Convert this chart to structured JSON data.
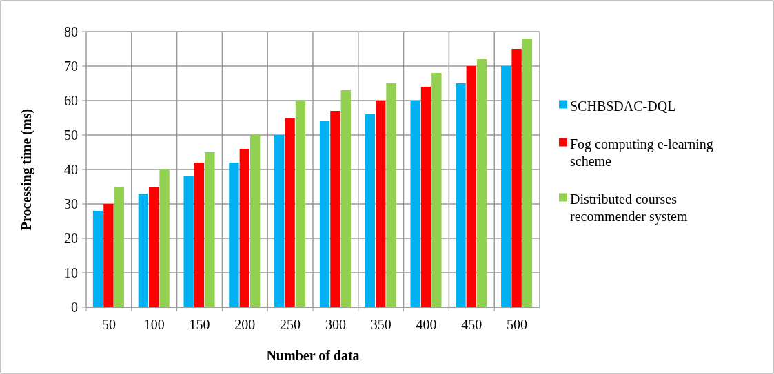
{
  "chart_data": {
    "type": "bar",
    "xlabel": "Number of data",
    "ylabel": "Processing time (ms)",
    "categories": [
      "50",
      "100",
      "150",
      "200",
      "250",
      "300",
      "350",
      "400",
      "450",
      "500"
    ],
    "series": [
      {
        "name": "SCHBSDAC-DQL",
        "color": "#00b0f0",
        "values": [
          28,
          33,
          38,
          42,
          50,
          54,
          56,
          60,
          65,
          70
        ]
      },
      {
        "name": "Fog computing e-learning scheme",
        "color": "#ff0000",
        "values": [
          30,
          35,
          42,
          46,
          55,
          57,
          60,
          64,
          70,
          75
        ]
      },
      {
        "name": "Distributed courses recommender system",
        "color": "#92d050",
        "values": [
          35,
          40,
          45,
          50,
          60,
          63,
          65,
          68,
          72,
          78
        ]
      }
    ],
    "ylim": [
      0,
      80
    ],
    "yticks": [
      0,
      10,
      20,
      30,
      40,
      50,
      60,
      70,
      80
    ],
    "grid": true,
    "legend": "right"
  }
}
